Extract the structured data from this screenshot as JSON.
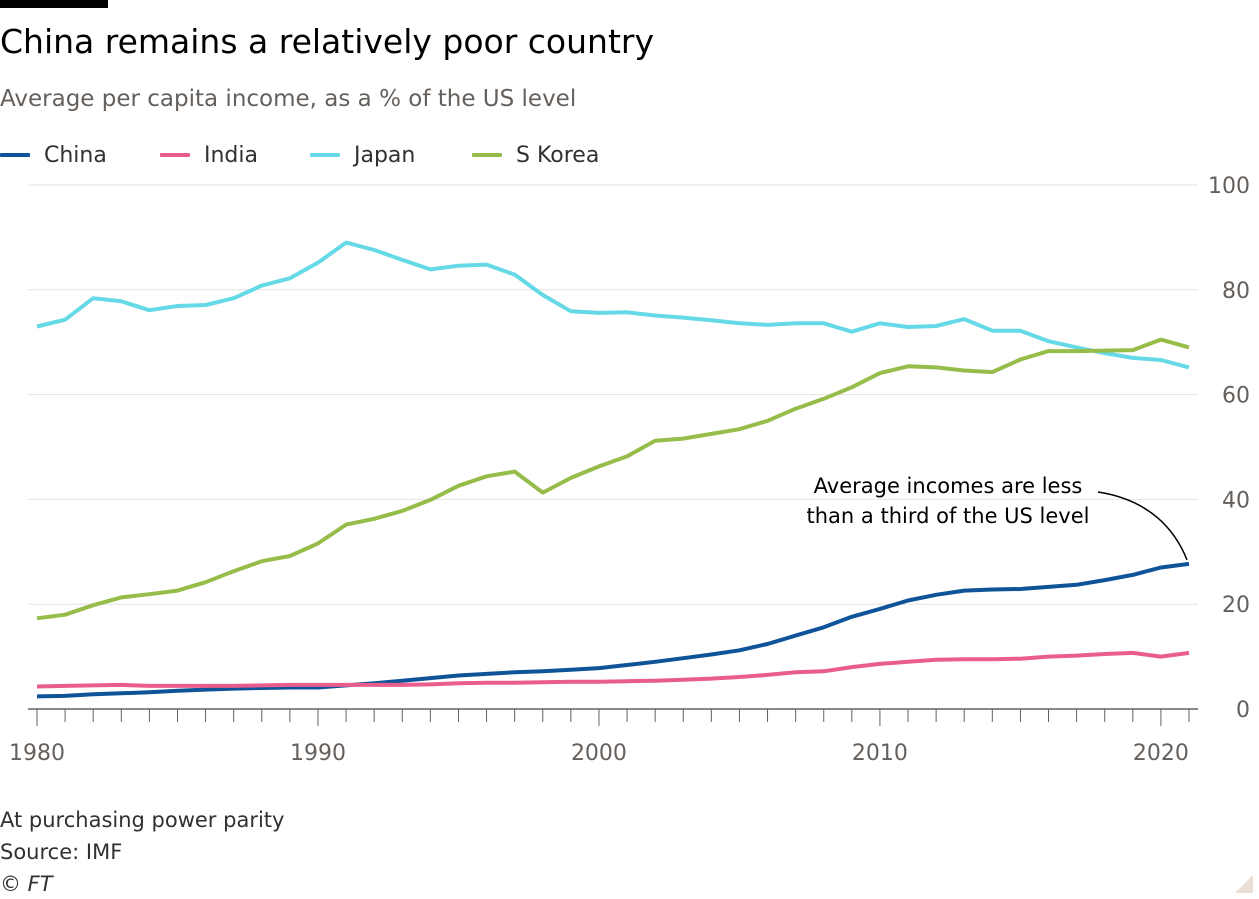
{
  "header": {
    "title": "China remains a relatively poor country",
    "subtitle": "Average per capita income, as a % of the US level"
  },
  "footer": {
    "note": "At purchasing power parity",
    "source": "Source: IMF",
    "copyright": "© FT"
  },
  "chart_data": {
    "type": "line",
    "title": "China remains a relatively poor country",
    "subtitle": "Average per capita income, as a % of the US level",
    "xlabel": "",
    "ylabel": "",
    "xlim": [
      1980,
      2021
    ],
    "ylim": [
      0,
      100
    ],
    "x_ticks": [
      1980,
      1990,
      2000,
      2010,
      2020
    ],
    "y_ticks": [
      0,
      20,
      40,
      60,
      80,
      100
    ],
    "y_axis_side": "right",
    "grid": "horizontal",
    "legend_position": "top-left",
    "x": [
      1980,
      1981,
      1982,
      1983,
      1984,
      1985,
      1986,
      1987,
      1988,
      1989,
      1990,
      1991,
      1992,
      1993,
      1994,
      1995,
      1996,
      1997,
      1998,
      1999,
      2000,
      2001,
      2002,
      2003,
      2004,
      2005,
      2006,
      2007,
      2008,
      2009,
      2010,
      2011,
      2012,
      2013,
      2014,
      2015,
      2016,
      2017,
      2018,
      2019,
      2020,
      2021
    ],
    "series": [
      {
        "name": "China",
        "color": "#0f5499",
        "values": [
          2.4,
          2.5,
          2.8,
          3.0,
          3.2,
          3.5,
          3.7,
          3.9,
          4.0,
          4.1,
          4.1,
          4.5,
          4.9,
          5.4,
          5.9,
          6.4,
          6.7,
          7.0,
          7.2,
          7.5,
          7.8,
          8.4,
          9.0,
          9.7,
          10.4,
          11.2,
          12.4,
          14.0,
          15.6,
          17.6,
          19.1,
          20.7,
          21.8,
          22.6,
          22.8,
          22.9,
          23.3,
          23.7,
          24.6,
          25.6,
          27.0,
          27.7
        ]
      },
      {
        "name": "India",
        "color": "#e95d8c",
        "values": [
          4.3,
          4.4,
          4.5,
          4.6,
          4.4,
          4.4,
          4.4,
          4.4,
          4.5,
          4.6,
          4.6,
          4.6,
          4.6,
          4.6,
          4.7,
          4.9,
          5.0,
          5.0,
          5.1,
          5.2,
          5.2,
          5.3,
          5.4,
          5.6,
          5.8,
          6.1,
          6.5,
          7.0,
          7.2,
          8.0,
          8.6,
          9.0,
          9.4,
          9.5,
          9.5,
          9.6,
          10.0,
          10.2,
          10.5,
          10.7,
          10.0,
          10.7
        ]
      },
      {
        "name": "Japan",
        "color": "#66d9e6",
        "values": [
          73.0,
          74.3,
          78.4,
          77.8,
          76.1,
          76.9,
          77.1,
          78.4,
          80.8,
          82.2,
          85.2,
          89.0,
          87.6,
          85.7,
          83.9,
          84.6,
          84.8,
          82.9,
          79.0,
          75.9,
          75.6,
          75.7,
          75.1,
          74.7,
          74.2,
          73.6,
          73.3,
          73.6,
          73.6,
          72.0,
          73.6,
          72.9,
          73.1,
          74.4,
          72.2,
          72.2,
          70.2,
          69.0,
          67.9,
          67.0,
          66.6,
          65.2
        ]
      },
      {
        "name": "S Korea",
        "color": "#96bc49",
        "values": [
          17.3,
          18.0,
          19.8,
          21.3,
          21.9,
          22.6,
          24.2,
          26.3,
          28.2,
          29.2,
          31.6,
          35.2,
          36.3,
          37.8,
          39.9,
          42.6,
          44.4,
          45.3,
          41.3,
          44.1,
          46.3,
          48.2,
          51.2,
          51.6,
          52.5,
          53.4,
          55.0,
          57.3,
          59.2,
          61.4,
          64.1,
          65.4,
          65.2,
          64.6,
          64.3,
          66.7,
          68.3,
          68.3,
          68.4,
          68.5,
          70.5,
          69.0
        ]
      }
    ],
    "annotation": {
      "lines": [
        "Average incomes are less",
        "than a third of the US level"
      ],
      "x": 2021,
      "y": 27.7
    }
  }
}
